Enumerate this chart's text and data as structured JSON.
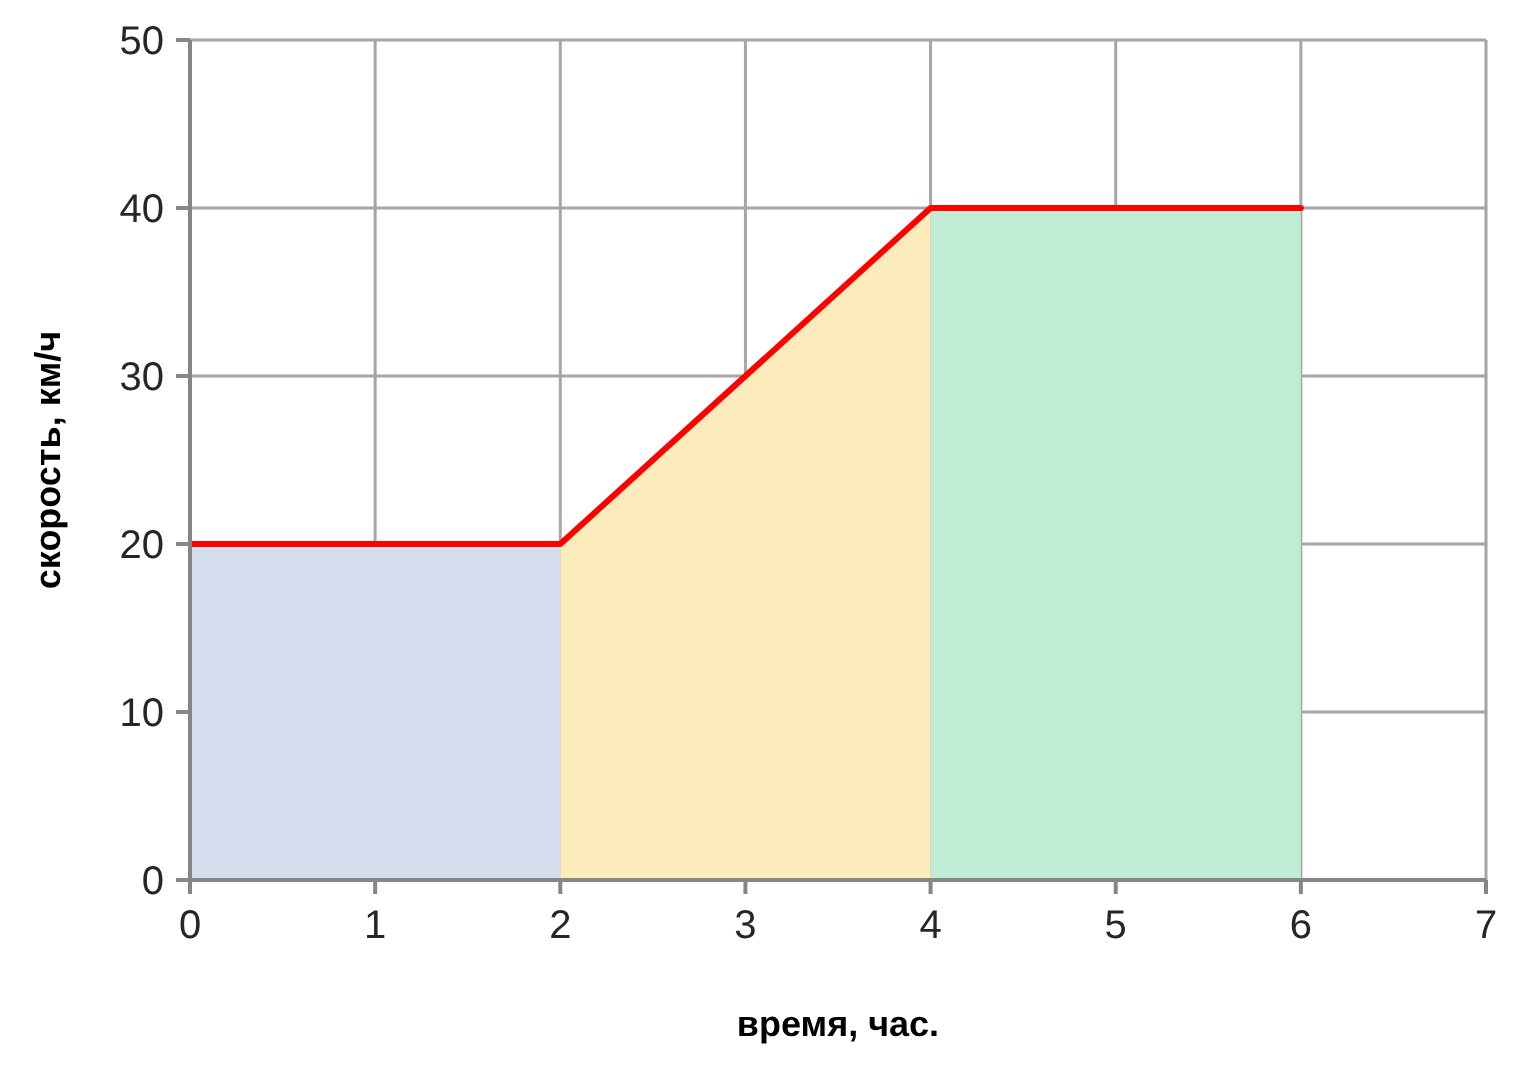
{
  "chart_data": {
    "type": "line",
    "xlabel": "время, час.",
    "ylabel": "скорость, км/ч",
    "xlim": [
      0,
      7
    ],
    "xticks": [
      0,
      1,
      2,
      3,
      4,
      5,
      6,
      7
    ],
    "ylim": [
      0,
      50
    ],
    "yticks": [
      0,
      10,
      20,
      30,
      40,
      50
    ],
    "grid": true,
    "marker": "none",
    "series": [
      {
        "type": "area",
        "color": "#d5deee",
        "x": [
          0,
          2
        ],
        "values": [
          20,
          20
        ]
      },
      {
        "type": "area",
        "color": "#fdecbb",
        "x": [
          2,
          4
        ],
        "values": [
          20,
          40
        ]
      },
      {
        "type": "area",
        "color": "#c0ebd4",
        "x": [
          4,
          6
        ],
        "values": [
          40,
          40
        ]
      },
      {
        "type": "line",
        "color": "#ff0000",
        "x": [
          0,
          2,
          4,
          6
        ],
        "values": [
          20,
          20,
          40,
          40
        ]
      }
    ]
  }
}
